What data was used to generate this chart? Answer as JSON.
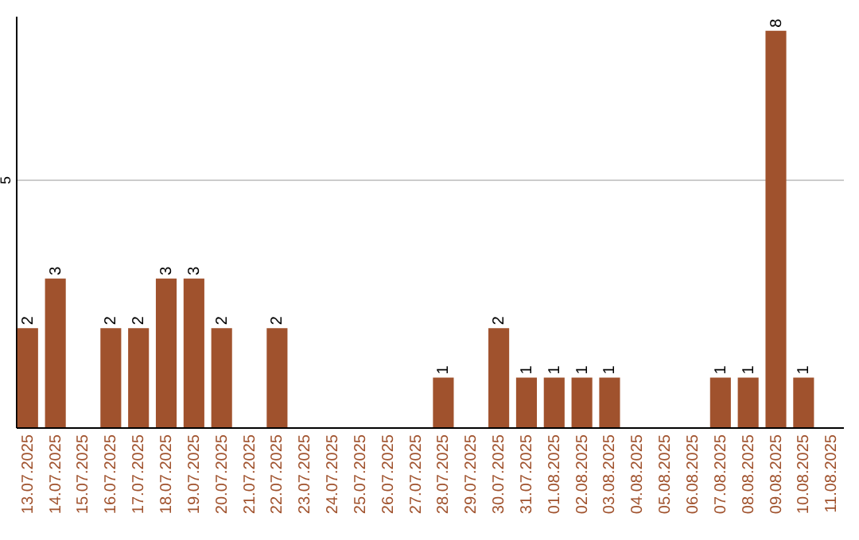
{
  "chart_data": {
    "type": "bar",
    "categories": [
      "13.07.2025",
      "14.07.2025",
      "15.07.2025",
      "16.07.2025",
      "17.07.2025",
      "18.07.2025",
      "19.07.2025",
      "20.07.2025",
      "21.07.2025",
      "22.07.2025",
      "23.07.2025",
      "24.07.2025",
      "25.07.2025",
      "26.07.2025",
      "27.07.2025",
      "28.07.2025",
      "29.07.2025",
      "30.07.2025",
      "31.07.2025",
      "01.08.2025",
      "02.08.2025",
      "03.08.2025",
      "04.08.2025",
      "05.08.2025",
      "06.08.2025",
      "07.08.2025",
      "08.08.2025",
      "09.08.2025",
      "10.08.2025",
      "11.08.2025"
    ],
    "values": [
      2,
      3,
      null,
      2,
      2,
      3,
      3,
      2,
      null,
      2,
      null,
      null,
      null,
      null,
      null,
      1,
      null,
      2,
      1,
      1,
      1,
      1,
      null,
      null,
      null,
      1,
      1,
      8,
      1,
      null
    ],
    "color": "#a0522d",
    "ylim": [
      0,
      8.3
    ],
    "yticks": [
      5
    ],
    "grid": "y",
    "data_labels": true
  }
}
